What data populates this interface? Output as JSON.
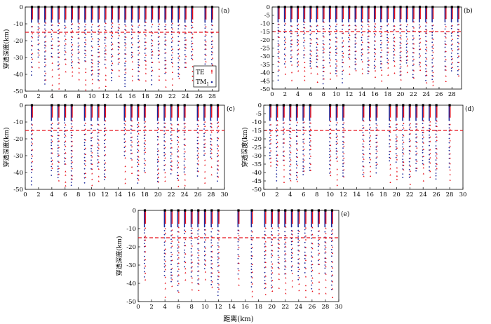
{
  "figure": {
    "xlabel": "距离(km)",
    "ylabel": "穿透深度(km)"
  },
  "legend": {
    "te": "TE",
    "tm": "TM",
    "tm_sub": "1",
    "te_color": "#e8101a",
    "tm_color": "#1e2a9c"
  },
  "chart_data": [
    {
      "type": "scatter",
      "panel": "(a)",
      "xlim": [
        0,
        29
      ],
      "ylim": [
        -50,
        0
      ],
      "xticks": [
        "0",
        "2",
        "4",
        "6",
        "8",
        "10",
        "12",
        "14",
        "16",
        "18",
        "20",
        "22",
        "24",
        "26",
        "28"
      ],
      "yticks": [
        "0",
        "-10",
        "-20",
        "-30",
        "-40",
        "-50"
      ],
      "ref_depth": -15,
      "stations": [
        1,
        2,
        3,
        4,
        5,
        6,
        7,
        8,
        9,
        10,
        11,
        12,
        13,
        14,
        15,
        16,
        17,
        18,
        19,
        20,
        21,
        22,
        23,
        24,
        25,
        27,
        28
      ],
      "te_depth_range": [
        -38,
        -50
      ],
      "tm_depth_range": [
        -30,
        -48
      ]
    },
    {
      "type": "scatter",
      "panel": "(b)",
      "xlim": [
        0,
        29.5
      ],
      "ylim": [
        -50,
        0
      ],
      "xticks": [
        "0",
        "2",
        "4",
        "6",
        "8",
        "10",
        "12",
        "14",
        "16",
        "18",
        "20",
        "22",
        "24",
        "26",
        "28"
      ],
      "yticks": [
        "0",
        "-5",
        "-10",
        "-15",
        "-20",
        "-25",
        "-30",
        "-35",
        "-40",
        "-45",
        "-50"
      ],
      "ref_depth": -15,
      "stations": [
        1,
        2,
        3,
        4,
        5,
        6,
        7,
        8,
        9,
        10,
        11,
        12,
        13,
        14,
        15,
        16,
        17,
        18,
        19,
        20,
        21,
        22,
        23,
        24,
        25,
        27,
        28,
        29
      ],
      "te_depth_range": [
        -40,
        -50
      ],
      "tm_depth_range": [
        -32,
        -48
      ]
    },
    {
      "type": "scatter",
      "panel": "(c)",
      "xlim": [
        0,
        30
      ],
      "ylim": [
        -50,
        0
      ],
      "xticks": [
        "0",
        "2",
        "4",
        "6",
        "8",
        "10",
        "12",
        "14",
        "16",
        "18",
        "20",
        "22",
        "24",
        "26",
        "28",
        "30"
      ],
      "yticks": [
        "0",
        "-10",
        "-20",
        "-30",
        "-40",
        "-50"
      ],
      "ref_depth": -15,
      "stations": [
        1,
        4,
        5,
        6,
        7,
        9,
        10,
        11,
        12,
        15,
        16,
        17,
        18,
        20,
        21,
        22,
        23,
        24,
        26,
        27,
        28,
        29
      ],
      "te_depth_range": [
        -40,
        -50
      ],
      "tm_depth_range": [
        -30,
        -48
      ]
    },
    {
      "type": "scatter",
      "panel": "(d)",
      "xlim": [
        0,
        30
      ],
      "ylim": [
        -50,
        0
      ],
      "xticks": [
        "0",
        "2",
        "4",
        "6",
        "8",
        "10",
        "12",
        "14",
        "16",
        "18",
        "20",
        "22",
        "24",
        "26",
        "28",
        "30"
      ],
      "yticks": [
        "0",
        "-5",
        "-10",
        "-15",
        "-20",
        "-25",
        "-30",
        "-35",
        "-40",
        "-45",
        "-50"
      ],
      "ref_depth": -15,
      "stations": [
        1,
        2,
        3,
        4,
        5,
        6,
        7,
        10,
        11,
        12,
        15,
        16,
        17,
        19,
        20,
        21,
        22,
        23,
        24,
        25,
        26,
        28
      ],
      "te_depth_range": [
        -38,
        -50
      ],
      "tm_depth_range": [
        -30,
        -48
      ]
    },
    {
      "type": "scatter",
      "panel": "(e)",
      "xlim": [
        0,
        30
      ],
      "ylim": [
        -50,
        0
      ],
      "xticks": [
        "0",
        "2",
        "4",
        "6",
        "8",
        "10",
        "12",
        "14",
        "16",
        "18",
        "20",
        "22",
        "24",
        "26",
        "28",
        "30"
      ],
      "yticks": [
        "0",
        "-10",
        "-20",
        "-30",
        "-40",
        "-50"
      ],
      "ref_depth": -15,
      "stations": [
        1,
        4,
        5,
        6,
        7,
        8,
        9,
        10,
        11,
        12,
        15,
        17,
        19,
        20,
        21,
        22,
        23,
        24,
        25,
        26,
        27,
        28,
        29
      ],
      "te_depth_range": [
        -40,
        -50
      ],
      "tm_depth_range": [
        -32,
        -48
      ]
    }
  ]
}
